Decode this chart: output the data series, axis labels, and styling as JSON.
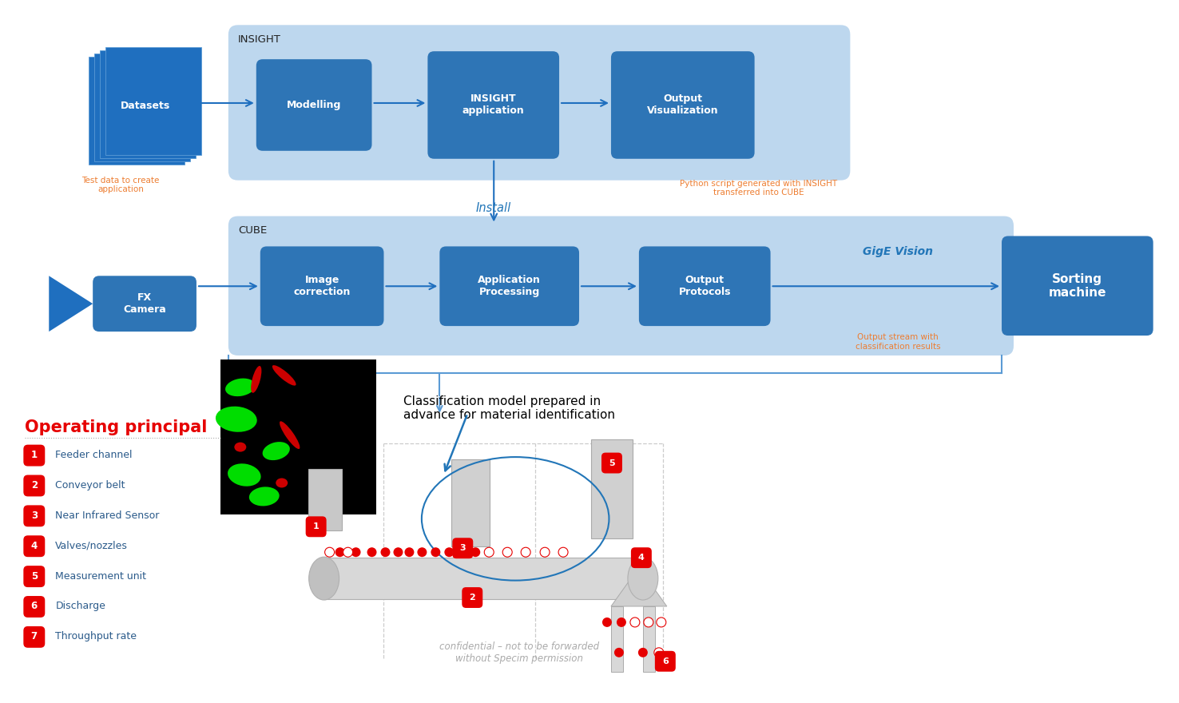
{
  "bg_color": "#ffffff",
  "dark_blue": "#1f6fbf",
  "light_blue_bg": "#bdd7ee",
  "inner_blue": "#2e75b6",
  "orange_color": "#ed7d31",
  "red_color": "#e60000",
  "items": [
    {
      "label": "Feeder channel",
      "num": "1"
    },
    {
      "label": "Conveyor belt",
      "num": "2"
    },
    {
      "label": "Near Infrared Sensor",
      "num": "3"
    },
    {
      "label": "Valves/nozzles",
      "num": "4"
    },
    {
      "label": "Measurement unit",
      "num": "5"
    },
    {
      "label": "Discharge",
      "num": "6"
    },
    {
      "label": "Throughput rate",
      "num": "7"
    }
  ],
  "annotation_text": "Classification model prepared in\nadvance for material identification",
  "confidential_text": "confidential – not to be forwarded\nwithout Specim permission"
}
